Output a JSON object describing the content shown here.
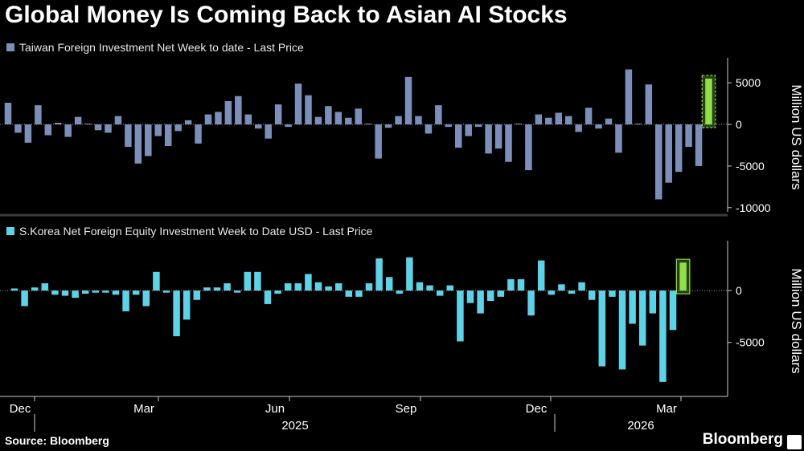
{
  "title": "Global Money Is Coming Back to Asian AI Stocks",
  "source": "Source: Bloomberg",
  "brand": "Bloomberg",
  "colors": {
    "background": "#000000",
    "taiwan": "#7b8fb9",
    "korea": "#5ed2e6",
    "highlight": "#8fe04a"
  },
  "chart_data": [
    {
      "type": "bar",
      "title": "Taiwan Foreign Investment Net Week to date - Last Price",
      "ylabel": "Million US dollars",
      "ylim": [
        -10500,
        8000
      ],
      "yticks": [
        5000,
        0,
        -5000,
        -10000
      ],
      "ytick_labels": [
        "5000",
        "0",
        "-5000",
        "-10000"
      ],
      "highlight_last": true,
      "values": [
        2600,
        -1000,
        -2200,
        2300,
        -1300,
        200,
        -1500,
        900,
        100,
        -700,
        -1000,
        1000,
        -2700,
        -4700,
        -3800,
        -1400,
        -2600,
        -800,
        500,
        -2300,
        1200,
        1500,
        2800,
        3400,
        1200,
        -500,
        -1700,
        2400,
        -300,
        4900,
        3500,
        900,
        2200,
        1500,
        800,
        1900,
        100,
        -4100,
        -400,
        1000,
        5700,
        1000,
        -1100,
        2300,
        -300,
        -2800,
        -1400,
        -300,
        -3500,
        -2900,
        -4500,
        100,
        -5500,
        1200,
        800,
        1400,
        1000,
        -900,
        2000,
        -500,
        700,
        -3400,
        6600,
        100,
        4800,
        -9000,
        -7000,
        -5700,
        -2700,
        -5000,
        5500
      ]
    },
    {
      "type": "bar",
      "title": "S.Korea Net Foreign Equity Investment Week to Date USD - Last Price",
      "ylabel": "Million US dollars",
      "ylim": [
        -10200,
        4800
      ],
      "yticks": [
        0,
        -5000
      ],
      "ytick_labels": [
        "0",
        "-5000"
      ],
      "highlight_last": true,
      "values": [
        200,
        -1500,
        300,
        700,
        -400,
        -500,
        -700,
        -300,
        -200,
        -200,
        -400,
        -2000,
        -400,
        -1500,
        1800,
        -200,
        -4400,
        -2800,
        -900,
        300,
        300,
        700,
        -200,
        1800,
        1800,
        -1300,
        -300,
        700,
        700,
        1600,
        800,
        400,
        700,
        -600,
        -600,
        700,
        3100,
        1300,
        -300,
        3200,
        800,
        500,
        -500,
        500,
        -4900,
        -1200,
        -2200,
        -1000,
        -600,
        1100,
        1100,
        -2400,
        2900,
        -400,
        600,
        -300,
        800,
        -900,
        -7300,
        -600,
        -7600,
        -3200,
        -5300,
        -2200,
        -8800,
        -3800,
        2700
      ]
    }
  ],
  "x_axis": {
    "month_labels": [
      "Dec",
      "Mar",
      "Jun",
      "Sep",
      "Dec",
      "Mar"
    ],
    "year_labels": [
      "2025",
      "2026"
    ]
  }
}
